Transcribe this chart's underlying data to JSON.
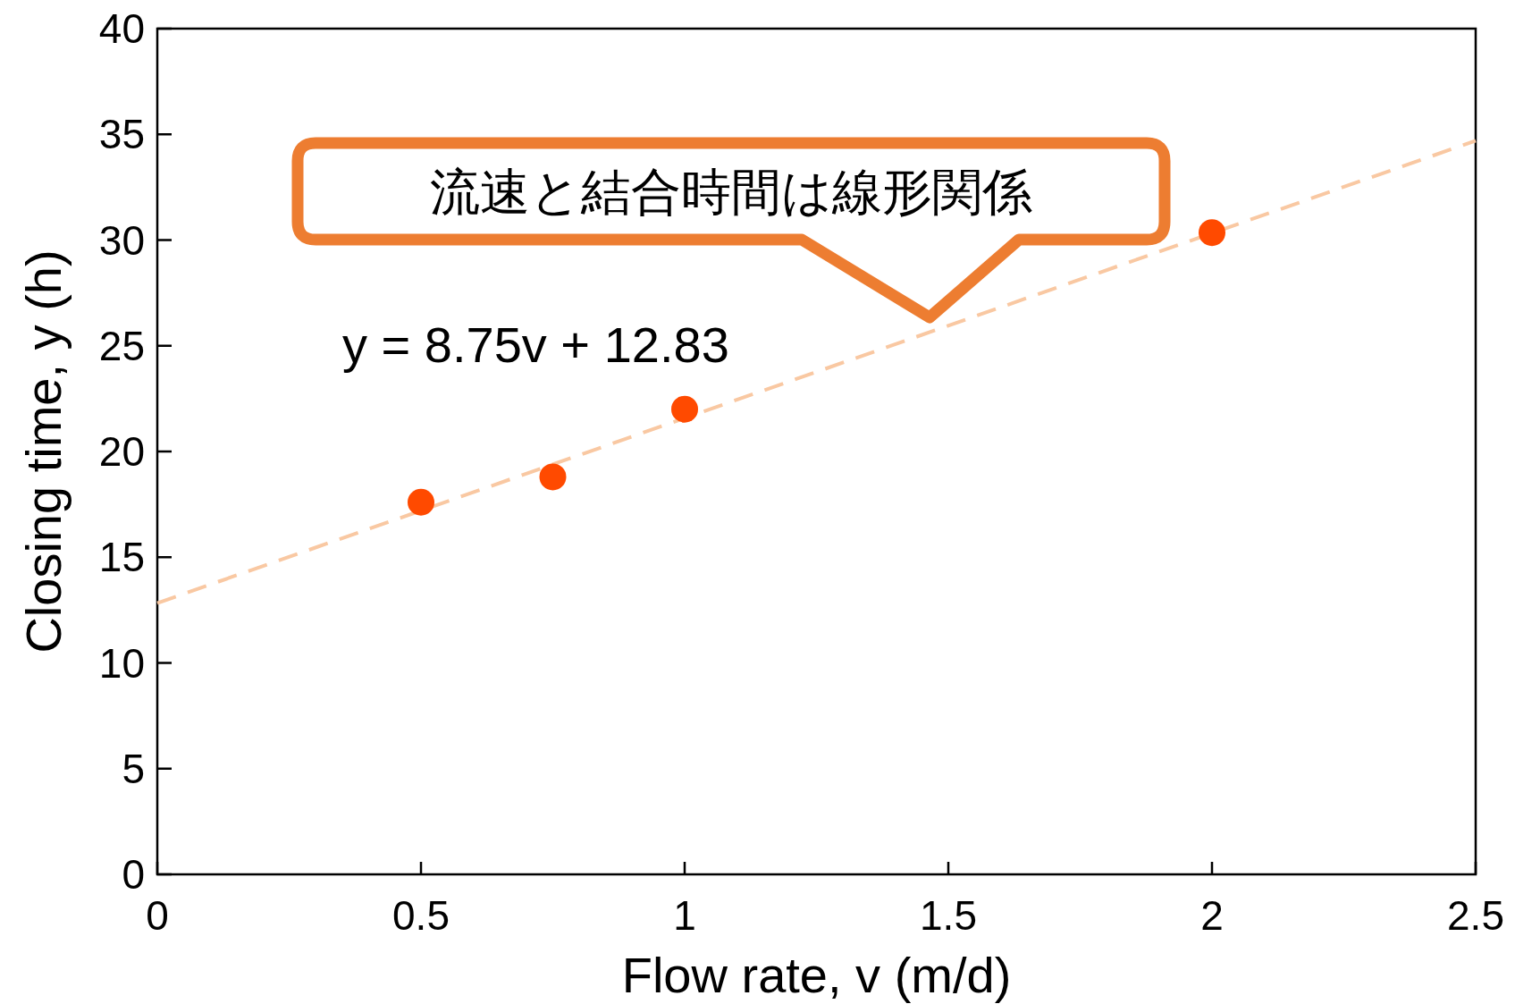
{
  "chart_data": {
    "type": "scatter",
    "xlabel": "Flow rate, v (m/d)",
    "ylabel": "Closing time, y (h)",
    "grid": false,
    "xlim": [
      0,
      2.5
    ],
    "xticks": [
      0,
      0.5,
      1,
      1.5,
      2,
      2.5
    ],
    "ylim": [
      0,
      40
    ],
    "yticks": [
      0,
      5,
      10,
      15,
      20,
      25,
      30,
      35,
      40
    ],
    "series": [
      {
        "type": "line",
        "color": "#f9c8a2",
        "line_style": "dashed",
        "x": [
          0,
          2.5
        ],
        "values": [
          12.83,
          34.7
        ]
      },
      {
        "marker": "circle",
        "color": "#ff4a00",
        "x": [
          0.5,
          0.75,
          1,
          2
        ],
        "values": [
          17.6,
          18.8,
          22.0,
          30.35
        ]
      }
    ],
    "annotations": [
      "流速と結合時間は線形関係",
      "y = 8.75v + 12.83"
    ]
  }
}
